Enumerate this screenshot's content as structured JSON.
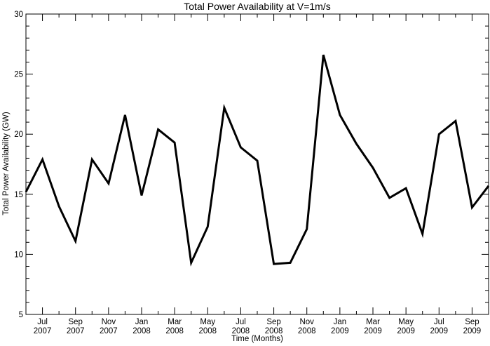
{
  "chart_data": {
    "type": "line",
    "title": "Total Power Availability at V=1m/s",
    "xlabel": "Time (Months)",
    "ylabel": "Total Power Availability (GW)",
    "ylim": [
      5,
      30
    ],
    "yticks": [
      5,
      10,
      15,
      20,
      25,
      30
    ],
    "grid": false,
    "x": [
      "2007-06",
      "2007-07",
      "2007-08",
      "2007-09",
      "2007-10",
      "2007-11",
      "2007-12",
      "2008-01",
      "2008-02",
      "2008-03",
      "2008-04",
      "2008-05",
      "2008-06",
      "2008-07",
      "2008-08",
      "2008-09",
      "2008-10",
      "2008-11",
      "2008-12",
      "2009-01",
      "2009-02",
      "2009-03",
      "2009-04",
      "2009-05",
      "2009-06",
      "2009-07",
      "2009-08",
      "2009-09",
      "2009-10"
    ],
    "xticks": [
      {
        "x": "2007-07",
        "month": "Jul",
        "year": "2007"
      },
      {
        "x": "2007-09",
        "month": "Sep",
        "year": "2007"
      },
      {
        "x": "2007-11",
        "month": "Nov",
        "year": "2007"
      },
      {
        "x": "2008-01",
        "month": "Jan",
        "year": "2008"
      },
      {
        "x": "2008-03",
        "month": "Mar",
        "year": "2008"
      },
      {
        "x": "2008-05",
        "month": "May",
        "year": "2008"
      },
      {
        "x": "2008-07",
        "month": "Jul",
        "year": "2008"
      },
      {
        "x": "2008-09",
        "month": "Sep",
        "year": "2008"
      },
      {
        "x": "2008-11",
        "month": "Nov",
        "year": "2008"
      },
      {
        "x": "2009-01",
        "month": "Jan",
        "year": "2009"
      },
      {
        "x": "2009-03",
        "month": "Mar",
        "year": "2009"
      },
      {
        "x": "2009-05",
        "month": "May",
        "year": "2009"
      },
      {
        "x": "2009-07",
        "month": "Jul",
        "year": "2009"
      },
      {
        "x": "2009-09",
        "month": "Sep",
        "year": "2009"
      }
    ],
    "series": [
      {
        "values": [
          15.2,
          17.9,
          14.0,
          11.1,
          17.9,
          15.9,
          21.6,
          14.9,
          20.4,
          19.3,
          9.3,
          12.3,
          22.2,
          18.9,
          17.8,
          9.2,
          9.3,
          12.1,
          26.6,
          21.6,
          19.2,
          17.2,
          14.7,
          15.5,
          11.7,
          20.0,
          21.1,
          13.9,
          15.7
        ],
        "color": "#000000"
      }
    ]
  }
}
